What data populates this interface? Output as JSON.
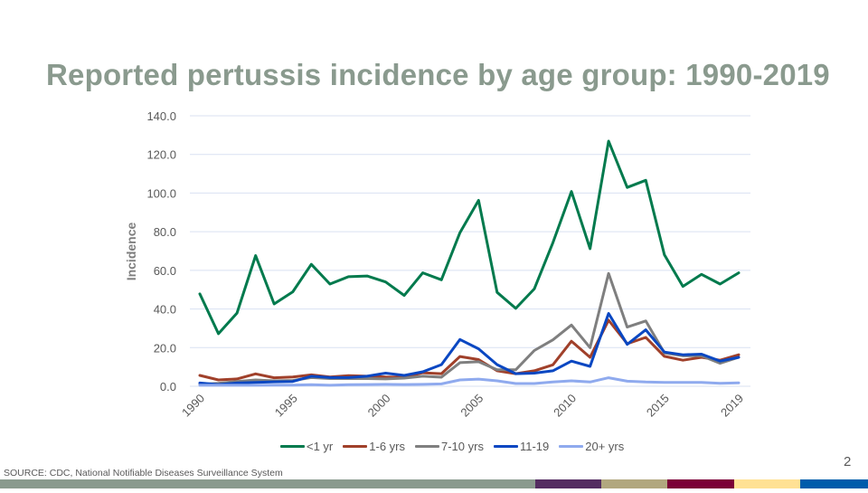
{
  "slide": {
    "title": "Reported pertussis incidence by age group: 1990-2019",
    "source": "SOURCE:  CDC, National Notifiable Diseases Surveillance System",
    "page_number": "2",
    "bottom_bar_colors": [
      "#8a9a8e",
      "#542d61",
      "#b1a77f",
      "#7b0037",
      "#ffe194",
      "#005cab"
    ]
  },
  "chart_data": {
    "type": "line",
    "title": "Reported pertussis incidence by age group: 1990-2019",
    "xlabel": "",
    "ylabel": "Incidence",
    "ylim": [
      0,
      140
    ],
    "yticks": [
      0,
      20,
      40,
      60,
      80,
      100,
      120,
      140
    ],
    "ytick_labels": [
      "0.0",
      "20.0",
      "40.0",
      "60.0",
      "80.0",
      "100.0",
      "120.0",
      "140.0"
    ],
    "x": [
      1990,
      1991,
      1992,
      1993,
      1994,
      1995,
      1996,
      1997,
      1998,
      1999,
      2000,
      2001,
      2002,
      2003,
      2004,
      2005,
      2006,
      2007,
      2008,
      2009,
      2010,
      2011,
      2012,
      2013,
      2014,
      2015,
      2016,
      2017,
      2018,
      2019
    ],
    "xtick_labels": [
      "1990",
      "1995",
      "2000",
      "2005",
      "2010",
      "2015",
      "2019"
    ],
    "xtick_values": [
      1990,
      1995,
      2000,
      2005,
      2010,
      2015,
      2019
    ],
    "grid": true,
    "legend_position": "bottom",
    "series": [
      {
        "name": "<1 yr",
        "color": "#007a4d",
        "values": [
          47.8,
          27.2,
          37.9,
          67.6,
          42.6,
          48.9,
          63.1,
          52.9,
          56.7,
          57.1,
          54.0,
          47.0,
          58.7,
          55.1,
          79.5,
          96.2,
          48.6,
          40.3,
          50.4,
          74.3,
          100.8,
          71.2,
          126.9,
          102.9,
          106.6,
          68.1,
          51.7,
          57.9,
          52.9,
          58.7
        ]
      },
      {
        "name": "1-6 yrs",
        "color": "#a0402a",
        "values": [
          5.6,
          3.3,
          3.8,
          6.4,
          4.4,
          4.8,
          5.9,
          4.8,
          5.5,
          5.2,
          4.8,
          4.7,
          7.0,
          6.5,
          15.4,
          13.8,
          8.0,
          6.5,
          8.0,
          11.1,
          23.3,
          15.0,
          34.2,
          22.0,
          25.3,
          15.5,
          13.5,
          15.0,
          13.5,
          16.3
        ]
      },
      {
        "name": "7-10 yrs",
        "color": "#7f7f7f",
        "values": [
          1.0,
          1.5,
          2.5,
          3.3,
          2.8,
          3.0,
          4.5,
          4.0,
          4.0,
          4.0,
          3.8,
          4.2,
          5.2,
          4.7,
          12.2,
          12.7,
          8.5,
          8.5,
          18.5,
          24.0,
          31.7,
          20.0,
          58.4,
          30.6,
          33.8,
          17.3,
          15.8,
          15.8,
          11.9,
          15.0
        ]
      },
      {
        "name": "11-19",
        "color": "#0a47c2",
        "values": [
          1.7,
          0.9,
          1.7,
          2.0,
          2.3,
          2.5,
          5.2,
          4.5,
          4.5,
          5.2,
          6.8,
          5.6,
          7.5,
          11.2,
          24.2,
          19.4,
          11.2,
          6.5,
          6.8,
          8.0,
          13.0,
          10.3,
          37.7,
          21.7,
          29.2,
          17.7,
          16.3,
          16.6,
          13.0,
          15.0
        ]
      },
      {
        "name": "20+ yrs",
        "color": "#8faaee",
        "values": [
          0.5,
          0.5,
          0.5,
          0.5,
          0.6,
          0.6,
          0.8,
          0.5,
          0.8,
          0.9,
          1.0,
          0.9,
          1.0,
          1.2,
          3.3,
          3.7,
          2.8,
          1.4,
          1.4,
          2.2,
          2.8,
          2.2,
          4.4,
          2.6,
          2.2,
          2.0,
          2.0,
          2.0,
          1.5,
          1.8
        ]
      }
    ]
  }
}
